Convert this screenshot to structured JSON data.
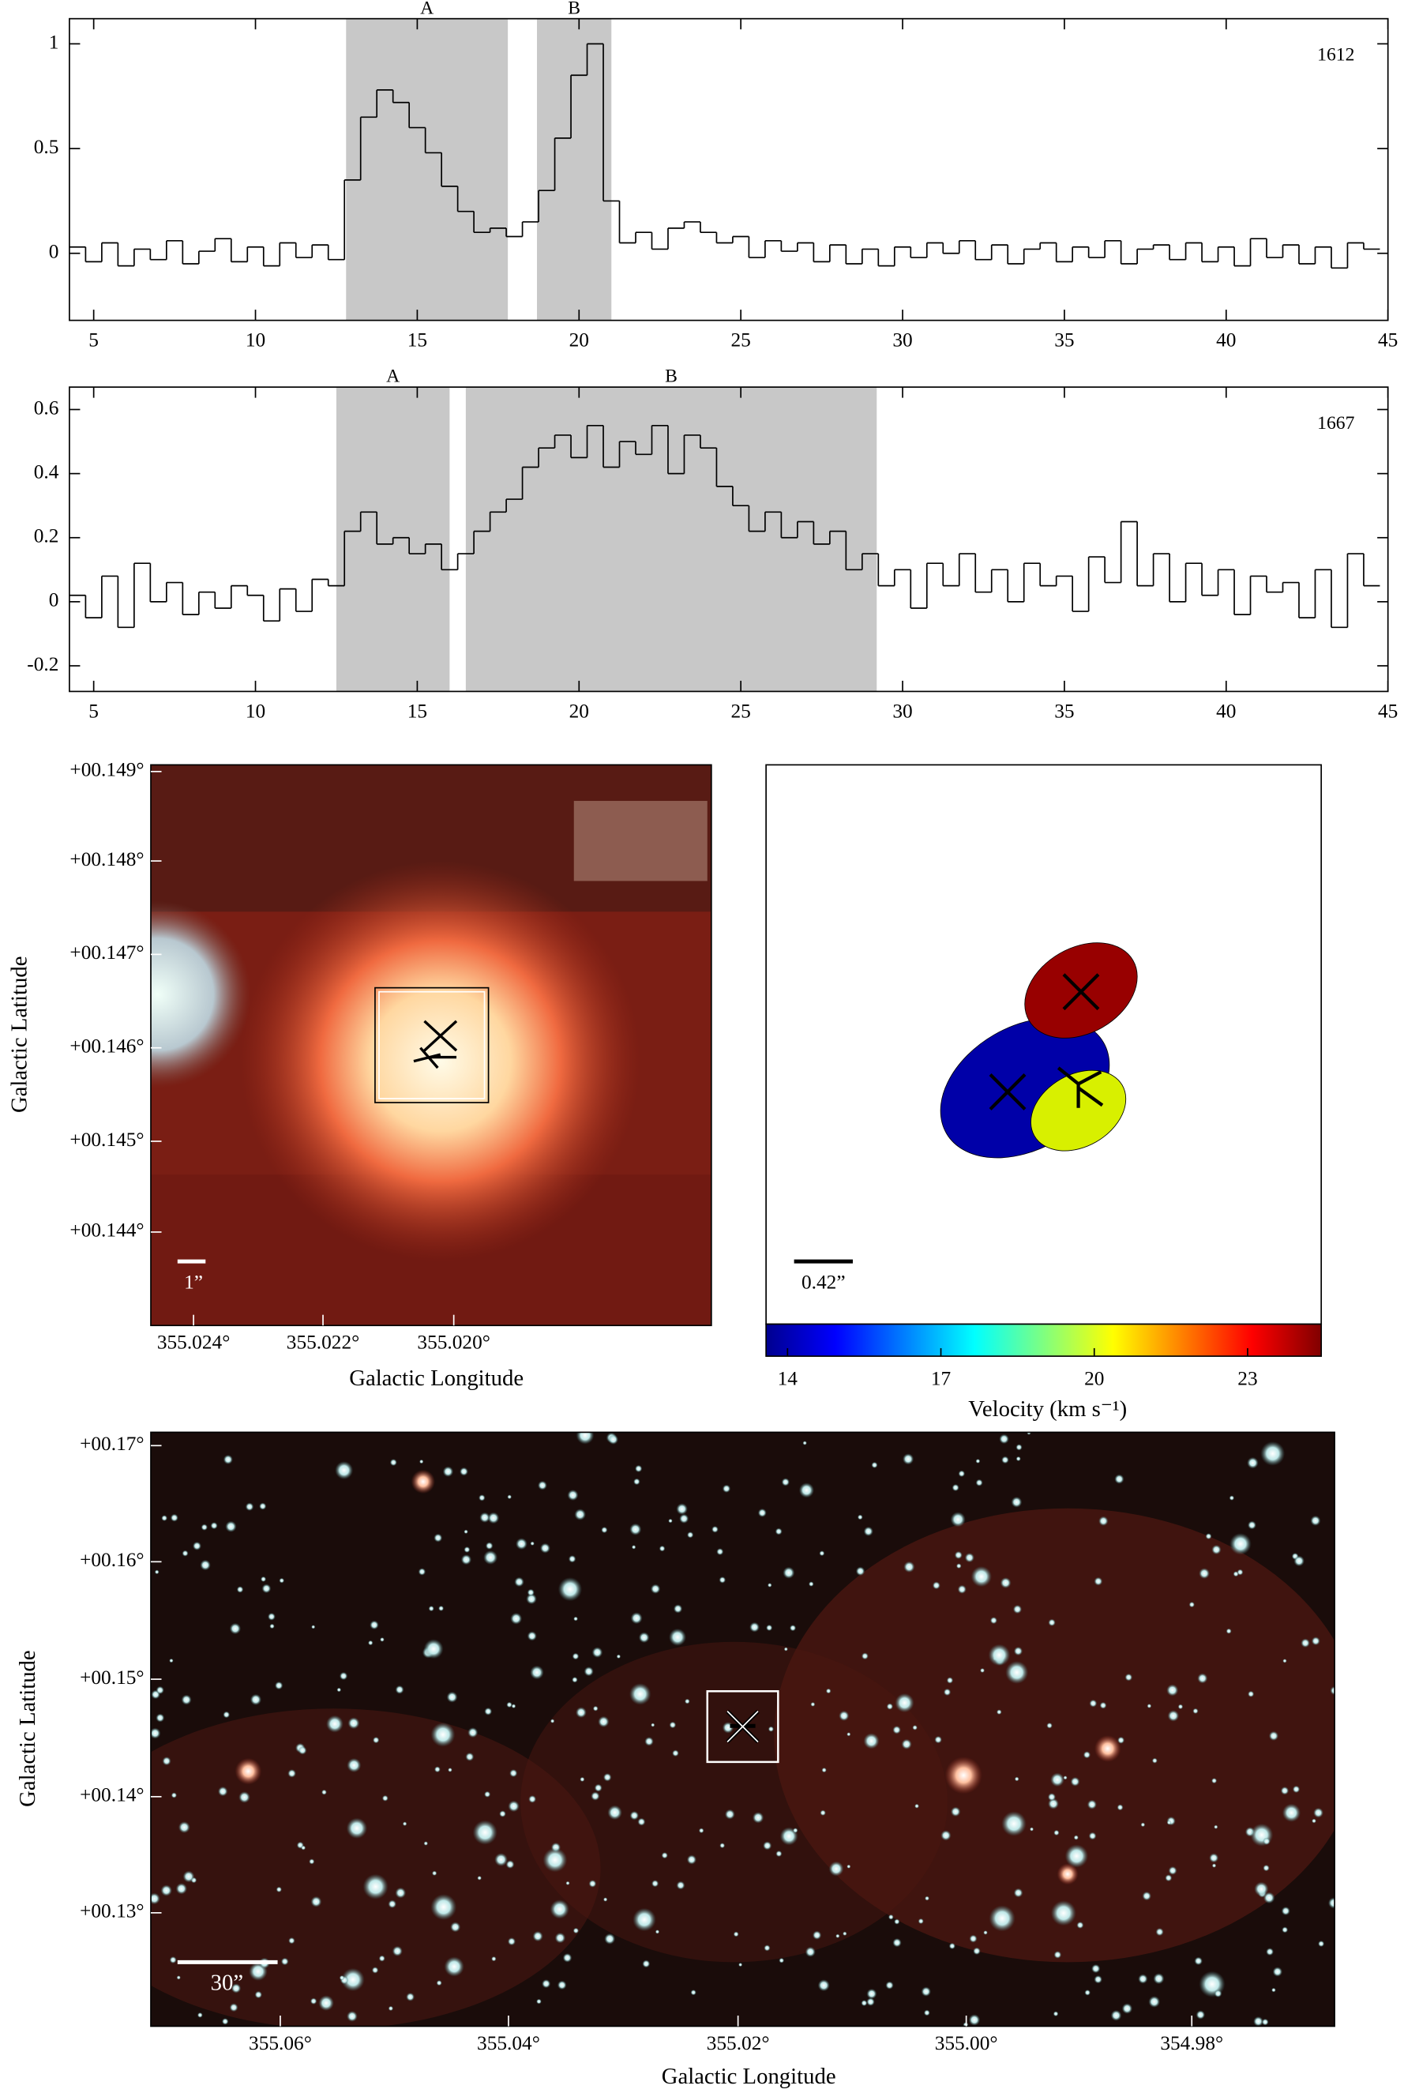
{
  "chart_data": [
    {
      "type": "line",
      "annotation": "1612",
      "xlim": [
        4.25,
        45
      ],
      "ylim": [
        -0.32,
        1.12
      ],
      "xticks": [
        5,
        10,
        15,
        20,
        25,
        30,
        35,
        40,
        45
      ],
      "yticks": [
        0,
        0.5,
        1
      ],
      "regions": [
        {
          "label": "A",
          "range": [
            12.8,
            17.8
          ]
        },
        {
          "label": "B",
          "range": [
            18.7,
            21.0
          ]
        }
      ],
      "x": [
        4.5,
        5,
        5.5,
        6,
        6.5,
        7,
        7.5,
        8,
        8.5,
        9,
        9.5,
        10,
        10.5,
        11,
        11.5,
        12,
        12.5,
        13,
        13.5,
        14,
        14.5,
        15,
        15.5,
        16,
        16.5,
        17,
        17.5,
        18,
        18.5,
        19,
        19.5,
        20,
        20.5,
        21,
        21.5,
        22,
        22.5,
        23,
        23.5,
        24,
        24.5,
        25,
        25.5,
        26,
        26.5,
        27,
        27.5,
        28,
        28.5,
        29,
        29.5,
        30,
        30.5,
        31,
        31.5,
        32,
        32.5,
        33,
        33.5,
        34,
        34.5,
        35,
        35.5,
        36,
        36.5,
        37,
        37.5,
        38,
        38.5,
        39,
        39.5,
        40,
        40.5,
        41,
        41.5,
        42,
        42.5,
        43,
        43.5,
        44,
        44.5
      ],
      "values": [
        0.03,
        -0.04,
        0.05,
        -0.06,
        0.02,
        -0.03,
        0.06,
        -0.05,
        0.01,
        0.07,
        -0.04,
        0.03,
        -0.06,
        0.05,
        -0.02,
        0.04,
        -0.03,
        0.35,
        0.65,
        0.78,
        0.72,
        0.6,
        0.48,
        0.32,
        0.2,
        0.1,
        0.12,
        0.08,
        0.15,
        0.3,
        0.55,
        0.85,
        1.0,
        0.25,
        0.05,
        0.1,
        0.02,
        0.12,
        0.15,
        0.1,
        0.05,
        0.08,
        -0.02,
        0.06,
        0.01,
        0.05,
        -0.04,
        0.04,
        -0.05,
        0.02,
        -0.06,
        0.03,
        -0.02,
        0.05,
        0.0,
        0.06,
        -0.03,
        0.04,
        -0.05,
        0.02,
        0.05,
        -0.04,
        0.03,
        -0.02,
        0.06,
        -0.05,
        0.02,
        0.04,
        -0.03,
        0.05,
        -0.04,
        0.03,
        -0.06,
        0.07,
        -0.02,
        0.04,
        -0.05,
        0.03,
        -0.07,
        0.05,
        0.02
      ]
    },
    {
      "type": "line",
      "annotation": "1667",
      "xlim": [
        4.25,
        45
      ],
      "ylim": [
        -0.28,
        0.67
      ],
      "xticks": [
        5,
        10,
        15,
        20,
        25,
        30,
        35,
        40,
        45
      ],
      "yticks": [
        -0.2,
        0,
        0.2,
        0.4,
        0.6
      ],
      "regions": [
        {
          "label": "A",
          "range": [
            12.5,
            16.0
          ]
        },
        {
          "label": "B",
          "range": [
            16.5,
            29.2
          ]
        }
      ],
      "x": [
        4.5,
        5,
        5.5,
        6,
        6.5,
        7,
        7.5,
        8,
        8.5,
        9,
        9.5,
        10,
        10.5,
        11,
        11.5,
        12,
        12.5,
        13,
        13.5,
        14,
        14.5,
        15,
        15.5,
        16,
        16.5,
        17,
        17.5,
        18,
        18.5,
        19,
        19.5,
        20,
        20.5,
        21,
        21.5,
        22,
        22.5,
        23,
        23.5,
        24,
        24.5,
        25,
        25.5,
        26,
        26.5,
        27,
        27.5,
        28,
        28.5,
        29,
        29.5,
        30,
        30.5,
        31,
        31.5,
        32,
        32.5,
        33,
        33.5,
        34,
        34.5,
        35,
        35.5,
        36,
        36.5,
        37,
        37.5,
        38,
        38.5,
        39,
        39.5,
        40,
        40.5,
        41,
        41.5,
        42,
        42.5,
        43,
        43.5,
        44,
        44.5
      ],
      "values": [
        0.02,
        -0.05,
        0.08,
        -0.08,
        0.12,
        0.0,
        0.06,
        -0.04,
        0.03,
        -0.02,
        0.05,
        0.02,
        -0.06,
        0.04,
        -0.03,
        0.07,
        0.05,
        0.22,
        0.28,
        0.18,
        0.2,
        0.15,
        0.18,
        0.1,
        0.15,
        0.22,
        0.28,
        0.32,
        0.42,
        0.48,
        0.52,
        0.45,
        0.55,
        0.42,
        0.5,
        0.46,
        0.55,
        0.4,
        0.52,
        0.48,
        0.36,
        0.3,
        0.22,
        0.28,
        0.2,
        0.25,
        0.18,
        0.22,
        0.1,
        0.15,
        0.05,
        0.1,
        -0.02,
        0.12,
        0.05,
        0.15,
        0.03,
        0.1,
        0.0,
        0.12,
        0.05,
        0.08,
        -0.03,
        0.14,
        0.06,
        0.25,
        0.05,
        0.15,
        0.0,
        0.12,
        0.02,
        0.1,
        -0.04,
        0.08,
        0.03,
        0.06,
        -0.05,
        0.1,
        -0.08,
        0.15,
        0.05
      ]
    }
  ],
  "zoom_image": {
    "yticks": [
      "+00.149°",
      "+00.148°",
      "+00.147°",
      "+00.146°",
      "+00.145°",
      "+00.144°"
    ],
    "xticks": [
      "355.024°",
      "355.022°",
      "355.020°"
    ],
    "xlabel": "Galactic Longitude",
    "ylabel": "Galactic Latitude",
    "scale_label": "1”"
  },
  "velocity_map": {
    "clim": [
      13.58,
      24.44
    ],
    "ticks": [
      14,
      17,
      20,
      23
    ],
    "colorbar_label": "Velocity (km s⁻¹)",
    "scale_label": "0.42”"
  },
  "wide_image": {
    "yticks": [
      "+00.17°",
      "+00.16°",
      "+00.15°",
      "+00.14°",
      "+00.13°"
    ],
    "xticks": [
      "355.06°",
      "355.04°",
      "355.02°",
      "355.00°",
      "354.98°"
    ],
    "xlabel": "Galactic Longitude",
    "ylabel": "Galactic Latitude",
    "scale_label": "30”"
  }
}
